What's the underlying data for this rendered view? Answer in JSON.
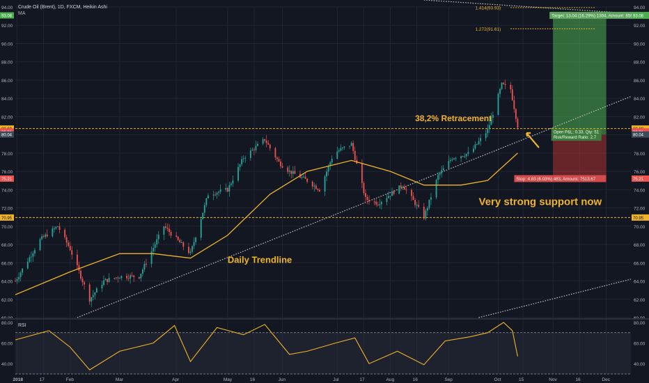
{
  "header": {
    "title": "Crude Oil (Brent), 1D, FXCM, Heikin Ashi",
    "indicator": "MA"
  },
  "colors": {
    "background": "#131722",
    "grid": "#222634",
    "up": "#26a69a",
    "down": "#ef5350",
    "ma": "#f0b429",
    "annotation": "#f0b429",
    "target_zone": "#4caf50",
    "stop_zone": "#e53935",
    "axis_text": "#b2b5be"
  },
  "chart_data": [
    {
      "type": "candlestick",
      "title": "Crude Oil (Brent), 1D, FXCM, Heikin Ashi",
      "ylim": [
        60,
        94
      ],
      "y_ticks": [
        "94.00",
        "92.00",
        "90.00",
        "88.00",
        "86.00",
        "84.00",
        "82.00",
        "80.00",
        "78.00",
        "76.00",
        "74.00",
        "72.00",
        "70.00",
        "68.00",
        "66.00",
        "64.00",
        "62.00",
        "60.00"
      ],
      "x_ticks": [
        "2018",
        "17",
        "Feb",
        "Mar",
        "Apr",
        "May",
        "16",
        "Jun",
        "Jul",
        "17",
        "Aug",
        "16",
        "Sep",
        "Oct",
        "15",
        "Nov",
        "16",
        "Dec"
      ],
      "price_path": [
        [
          "2018-01-01",
          64.0
        ],
        [
          "2018-01-15",
          68.5
        ],
        [
          "2018-01-25",
          70.0
        ],
        [
          "2018-02-01",
          67.5
        ],
        [
          "2018-02-12",
          62.0
        ],
        [
          "2018-02-20",
          64.0
        ],
        [
          "2018-03-01",
          64.5
        ],
        [
          "2018-03-12",
          64.5
        ],
        [
          "2018-03-26",
          70.0
        ],
        [
          "2018-04-05",
          68.0
        ],
        [
          "2018-04-10",
          67.0
        ],
        [
          "2018-04-20",
          73.5
        ],
        [
          "2018-05-01",
          74.0
        ],
        [
          "2018-05-10",
          77.5
        ],
        [
          "2018-05-22",
          79.5
        ],
        [
          "2018-05-30",
          77.0
        ],
        [
          "2018-06-05",
          76.0
        ],
        [
          "2018-06-15",
          75.0
        ],
        [
          "2018-06-22",
          74.0
        ],
        [
          "2018-06-30",
          78.0
        ],
        [
          "2018-07-10",
          79.0
        ],
        [
          "2018-07-18",
          73.0
        ],
        [
          "2018-07-25",
          72.5
        ],
        [
          "2018-08-01",
          73.5
        ],
        [
          "2018-08-08",
          74.5
        ],
        [
          "2018-08-15",
          72.5
        ],
        [
          "2018-08-20",
          71.0
        ],
        [
          "2018-08-28",
          75.5
        ],
        [
          "2018-09-05",
          77.5
        ],
        [
          "2018-09-15",
          78.0
        ],
        [
          "2018-09-25",
          80.5
        ],
        [
          "2018-10-03",
          85.5
        ],
        [
          "2018-10-08",
          85.0
        ],
        [
          "2018-10-12",
          81.0
        ]
      ],
      "ma_path": [
        [
          "2018-01-01",
          62.5
        ],
        [
          "2018-02-01",
          65.0
        ],
        [
          "2018-03-01",
          67.0
        ],
        [
          "2018-03-20",
          67.0
        ],
        [
          "2018-04-10",
          66.5
        ],
        [
          "2018-05-01",
          69.0
        ],
        [
          "2018-05-25",
          73.5
        ],
        [
          "2018-06-15",
          76.0
        ],
        [
          "2018-07-10",
          77.2
        ],
        [
          "2018-08-01",
          76.0
        ],
        [
          "2018-08-20",
          74.5
        ],
        [
          "2018-09-10",
          74.5
        ],
        [
          "2018-09-25",
          75.0
        ],
        [
          "2018-10-12",
          78.0
        ]
      ],
      "horizontal_levels": [
        {
          "price": 80.69,
          "label": "80.69"
        },
        {
          "price": 70.95,
          "label": "70.95"
        }
      ],
      "fib_levels": [
        {
          "price": 93.93,
          "label": "1.414(93.93)"
        },
        {
          "price": 91.61,
          "label": "1.272(91.61)"
        }
      ],
      "price_labels": [
        {
          "price": 93.08,
          "label": "93.08"
        },
        {
          "price": 80.69,
          "label": "80.69"
        },
        {
          "price": 80.37,
          "label": "80.37"
        },
        {
          "price": 80.31,
          "label": "80.31"
        },
        {
          "price": 80.04,
          "label": "80.04"
        },
        {
          "price": 75.21,
          "label": "75.21"
        },
        {
          "price": 70.95,
          "label": "70.95"
        }
      ],
      "position": {
        "entry": 80.04,
        "target": 93.08,
        "stop": 75.21,
        "start": "2018-11-01",
        "end": "2018-12-01",
        "target_label": "Target: 13.04 (16.29%) 1304, Amount: 8565.04",
        "stop_label": "Stop: 4.83 (6.03%) 483, Amount: 7513.67",
        "open_label": "Open P&L: 0.33, Qty: 51",
        "rr_label": "Risk/Reward Ratio: 2.7"
      },
      "annotations": [
        {
          "text": "38,2% Retracement",
          "date": "2018-08-15",
          "price": 81.5
        },
        {
          "text": "Very strong support now",
          "date": "2018-09-20",
          "price": 72.3
        },
        {
          "text": "Daily Trendline",
          "date": "2018-05-01",
          "price": 66.0
        }
      ]
    },
    {
      "type": "line",
      "title": "RSI",
      "ylim": [
        30,
        82
      ],
      "y_ticks": [
        "80.00",
        "60.00",
        "40.00"
      ],
      "bands": [
        70,
        30
      ],
      "rsi_path": [
        [
          "2018-01-01",
          63
        ],
        [
          "2018-01-20",
          72
        ],
        [
          "2018-02-01",
          56
        ],
        [
          "2018-02-12",
          34
        ],
        [
          "2018-03-01",
          52
        ],
        [
          "2018-03-20",
          60
        ],
        [
          "2018-04-01",
          77
        ],
        [
          "2018-04-10",
          42
        ],
        [
          "2018-04-25",
          75
        ],
        [
          "2018-05-10",
          68
        ],
        [
          "2018-05-22",
          78
        ],
        [
          "2018-06-05",
          49
        ],
        [
          "2018-06-15",
          52
        ],
        [
          "2018-07-01",
          60
        ],
        [
          "2018-07-12",
          65
        ],
        [
          "2018-07-20",
          40
        ],
        [
          "2018-08-05",
          52
        ],
        [
          "2018-08-20",
          39
        ],
        [
          "2018-09-01",
          62
        ],
        [
          "2018-09-15",
          66
        ],
        [
          "2018-09-25",
          70
        ],
        [
          "2018-10-04",
          80
        ],
        [
          "2018-10-09",
          72
        ],
        [
          "2018-10-12",
          47
        ]
      ]
    }
  ]
}
